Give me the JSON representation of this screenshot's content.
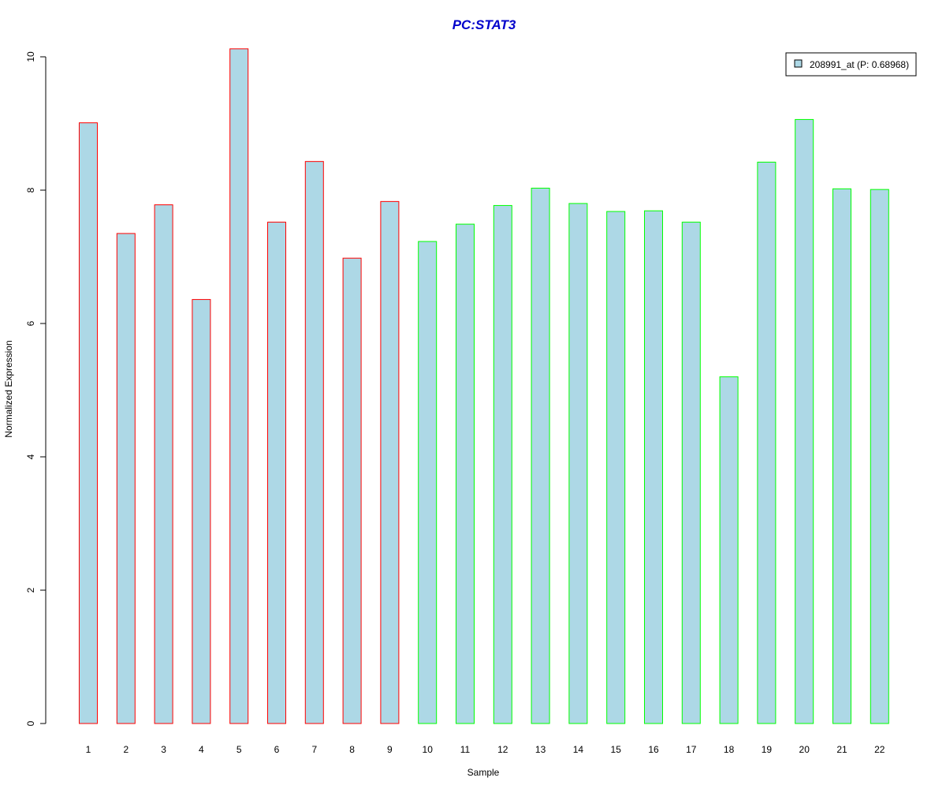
{
  "chart_data": {
    "type": "bar",
    "title": "PC:STAT3",
    "xlabel": "Sample",
    "ylabel": "Normalized Expression",
    "categories": [
      "1",
      "2",
      "3",
      "4",
      "5",
      "6",
      "7",
      "8",
      "9",
      "10",
      "11",
      "12",
      "13",
      "14",
      "15",
      "16",
      "17",
      "18",
      "19",
      "20",
      "21",
      "22"
    ],
    "series": [
      {
        "name": "208991_at (P: 0.68968)",
        "values": [
          9.01,
          7.35,
          7.78,
          6.36,
          10.12,
          7.52,
          8.43,
          6.98,
          7.83,
          7.23,
          7.49,
          7.77,
          8.03,
          7.8,
          7.68,
          7.69,
          7.52,
          5.2,
          8.42,
          9.06,
          8.02,
          8.01
        ]
      }
    ],
    "group_colors": {
      "group1": "#ff0000",
      "group2": "#00ff00"
    },
    "bar_groups": [
      "group1",
      "group1",
      "group1",
      "group1",
      "group1",
      "group1",
      "group1",
      "group1",
      "group1",
      "group2",
      "group2",
      "group2",
      "group2",
      "group2",
      "group2",
      "group2",
      "group2",
      "group2",
      "group2",
      "group2",
      "group2",
      "group2"
    ],
    "yticks": [
      "0",
      "2",
      "4",
      "6",
      "8",
      "10"
    ],
    "ylim": [
      0,
      10.2
    ],
    "legend_position": "top-right",
    "grid": false,
    "fill_color": "#add8e6",
    "title_color": "#0000cc"
  }
}
